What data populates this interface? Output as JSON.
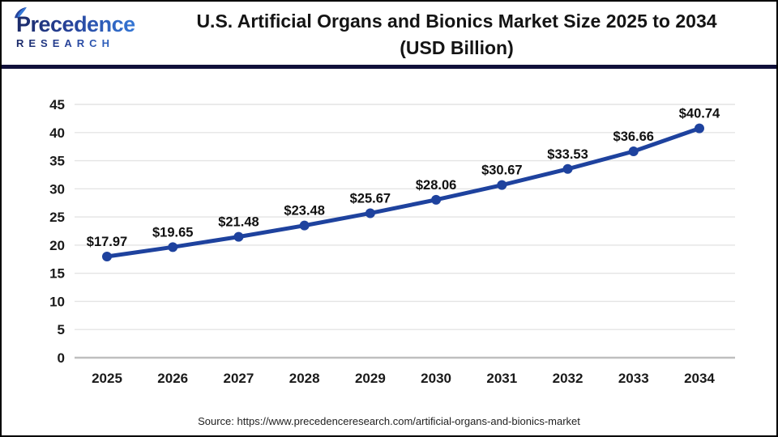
{
  "header": {
    "logo": {
      "name": "Precedence",
      "subtitle": "RESEARCH"
    },
    "title_line1": "U.S. Artificial Organs and Bionics Market Size 2025 to 2034",
    "title_line2": "(USD Billion)"
  },
  "footer": {
    "source": "Source: https://www.precedenceresearch.com/artificial-organs-and-bionics-market"
  },
  "colors": {
    "line": "#1e429e",
    "marker": "#1e429e",
    "grid": "#e4e4e4",
    "axis_zero": "#bfbfbf",
    "separator": "#10103a",
    "tick_text": "#1a1a1a",
    "label_text": "#111111",
    "logo_dark": "#1b2a68",
    "logo_light": "#3579d8"
  },
  "chart_data": {
    "type": "line",
    "title": "U.S. Artificial Organs and Bionics Market Size 2025 to 2034 (USD Billion)",
    "categories": [
      "2025",
      "2026",
      "2027",
      "2028",
      "2029",
      "2030",
      "2031",
      "2032",
      "2033",
      "2034"
    ],
    "values": [
      17.97,
      19.65,
      21.48,
      23.48,
      25.67,
      28.06,
      30.67,
      33.53,
      36.66,
      40.74
    ],
    "point_labels": [
      "$17.97",
      "$19.65",
      "$21.48",
      "$23.48",
      "$25.67",
      "$28.06",
      "$30.67",
      "$33.53",
      "$36.66",
      "$40.74"
    ],
    "xlabel": "",
    "ylabel": "",
    "ylim": [
      0,
      45
    ],
    "ytick_step": 5,
    "grid": true,
    "legend": "none",
    "marker": "circle"
  }
}
